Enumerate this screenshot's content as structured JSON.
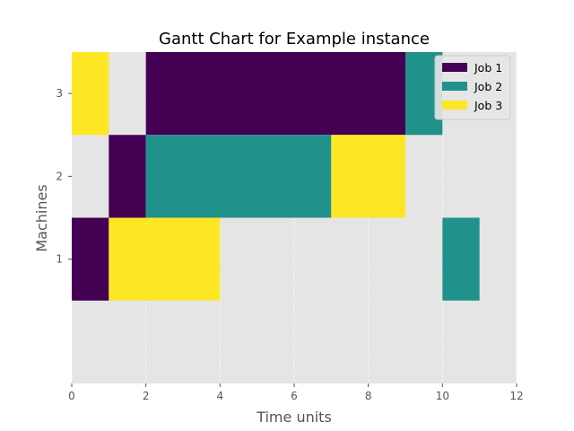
{
  "chart_data": {
    "type": "gantt",
    "title": "Gantt Chart for Example instance",
    "xlabel": "Time units",
    "ylabel": "Machines",
    "xlim": [
      0,
      12
    ],
    "ylim": [
      -0.5,
      3.5
    ],
    "xticks": [
      "0",
      "2",
      "4",
      "6",
      "8",
      "10",
      "12"
    ],
    "yticks": [
      "1",
      "2",
      "3"
    ],
    "grid": true,
    "legend_position": "top-right",
    "series": [
      {
        "name": "Job 1",
        "color": "#440154",
        "tasks": [
          {
            "machine": 1,
            "start": 0,
            "end": 1
          },
          {
            "machine": 2,
            "start": 1,
            "end": 2
          },
          {
            "machine": 3,
            "start": 2,
            "end": 9
          }
        ]
      },
      {
        "name": "Job 2",
        "color": "#21918c",
        "tasks": [
          {
            "machine": 2,
            "start": 2,
            "end": 7
          },
          {
            "machine": 3,
            "start": 9,
            "end": 10
          },
          {
            "machine": 1,
            "start": 10,
            "end": 11
          }
        ]
      },
      {
        "name": "Job 3",
        "color": "#fde725",
        "tasks": [
          {
            "machine": 3,
            "start": 0,
            "end": 1
          },
          {
            "machine": 1,
            "start": 1,
            "end": 4
          },
          {
            "machine": 2,
            "start": 7,
            "end": 9
          }
        ]
      }
    ]
  }
}
